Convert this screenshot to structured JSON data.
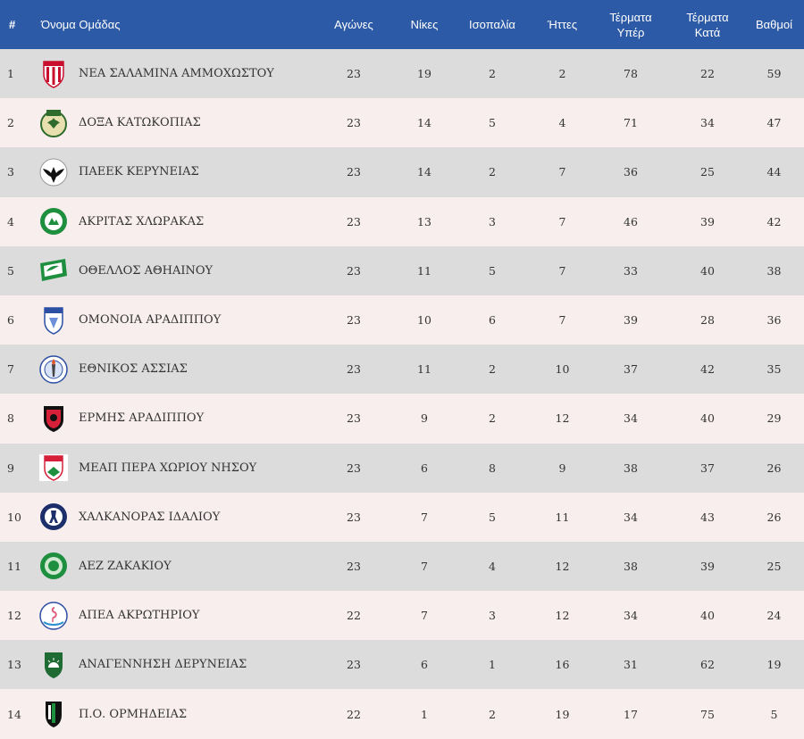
{
  "headers": {
    "rank": "#",
    "team": "Όνομα Ομάδας",
    "played": "Αγώνες",
    "wins": "Νίκες",
    "draws": "Ισοπαλία",
    "losses": "Ήττες",
    "goals_for_1": "Τέρματα",
    "goals_for_2": "Υπέρ",
    "goals_against_1": "Τέρματα",
    "goals_against_2": "Κατά",
    "points": "Βαθμοί"
  },
  "rows": [
    {
      "rank": "1",
      "team": "ΝΕΑ ΣΑΛΑΜΙΝΑ ΑΜΜΟΧΩΣΤΟΥ",
      "played": "23",
      "wins": "19",
      "draws": "2",
      "losses": "2",
      "gf": "78",
      "ga": "22",
      "pts": "59",
      "crest": "shield-striped-crest-icon"
    },
    {
      "rank": "2",
      "team": "ΔΟΞΑ ΚΑΤΩΚΟΠΙΑΣ",
      "played": "23",
      "wins": "14",
      "draws": "5",
      "losses": "4",
      "gf": "71",
      "ga": "34",
      "pts": "47",
      "crest": "eagle-wreath-crest-icon"
    },
    {
      "rank": "3",
      "team": "ΠΑΕΕΚ ΚΕΡΥΝΕΙΑΣ",
      "played": "23",
      "wins": "14",
      "draws": "2",
      "losses": "7",
      "gf": "36",
      "ga": "25",
      "pts": "44",
      "crest": "eagle-circle-crest-icon"
    },
    {
      "rank": "4",
      "team": "ΑΚΡΙΤΑΣ ΧΛΩΡΑΚΑΣ",
      "played": "23",
      "wins": "13",
      "draws": "3",
      "losses": "7",
      "gf": "46",
      "ga": "39",
      "pts": "42",
      "crest": "green-round-crest-icon"
    },
    {
      "rank": "5",
      "team": "ΟΘΕΛΛΟΣ ΑΘΗΑΙΝΟΥ",
      "played": "23",
      "wins": "11",
      "draws": "5",
      "losses": "7",
      "gf": "33",
      "ga": "40",
      "pts": "38",
      "crest": "green-banner-crest-icon"
    },
    {
      "rank": "6",
      "team": "ΟΜΟΝΟΙΑ ΑΡΑΔΙΠΠΟΥ",
      "played": "23",
      "wins": "10",
      "draws": "6",
      "losses": "7",
      "gf": "39",
      "ga": "28",
      "pts": "36",
      "crest": "blue-shield-crest-icon"
    },
    {
      "rank": "7",
      "team": "ΕΘΝΙΚΟΣ ΑΣΣΙΑΣ",
      "played": "23",
      "wins": "11",
      "draws": "2",
      "losses": "10",
      "gf": "37",
      "ga": "42",
      "pts": "35",
      "crest": "torch-round-crest-icon"
    },
    {
      "rank": "8",
      "team": "ΕΡΜΗΣ ΑΡΑΔΙΠΠΟΥ",
      "played": "23",
      "wins": "9",
      "draws": "2",
      "losses": "12",
      "gf": "34",
      "ga": "40",
      "pts": "29",
      "crest": "red-black-shield-crest-icon"
    },
    {
      "rank": "9",
      "team": "ΜΕΑΠ ΠΕΡΑ ΧΩΡΙΟΥ ΝΗΣΟΥ",
      "played": "23",
      "wins": "6",
      "draws": "8",
      "losses": "9",
      "gf": "38",
      "ga": "37",
      "pts": "26",
      "crest": "meap-shield-crest-icon"
    },
    {
      "rank": "10",
      "team": "ΧΑΛΚΑΝΟΡΑΣ ΙΔΑΛΙΟΥ",
      "played": "23",
      "wins": "7",
      "draws": "5",
      "losses": "11",
      "gf": "34",
      "ga": "43",
      "pts": "26",
      "crest": "navy-round-crest-icon"
    },
    {
      "rank": "11",
      "team": "ΑΕΖ ΖΑΚΑΚΙΟΥ",
      "played": "23",
      "wins": "7",
      "draws": "4",
      "losses": "12",
      "gf": "38",
      "ga": "39",
      "pts": "25",
      "crest": "aez-green-crest-icon"
    },
    {
      "rank": "12",
      "team": "ΑΠΕΑ ΑΚΡΩΤΗΡΙΟΥ",
      "played": "22",
      "wins": "7",
      "draws": "3",
      "losses": "12",
      "gf": "34",
      "ga": "40",
      "pts": "24",
      "crest": "flamingo-crest-icon"
    },
    {
      "rank": "13",
      "team": "ΑΝΑΓΕΝΝΗΣΗ ΔΕΡΥΝΕΙΑΣ",
      "played": "23",
      "wins": "6",
      "draws": "1",
      "losses": "16",
      "gf": "31",
      "ga": "62",
      "pts": "19",
      "crest": "green-sun-shield-crest-icon"
    },
    {
      "rank": "14",
      "team": "Π.Ο. ΟΡΜΗΔΕΙΑΣ",
      "played": "22",
      "wins": "1",
      "draws": "2",
      "losses": "19",
      "gf": "17",
      "ga": "75",
      "pts": "5",
      "crest": "black-green-shield-crest-icon"
    }
  ]
}
